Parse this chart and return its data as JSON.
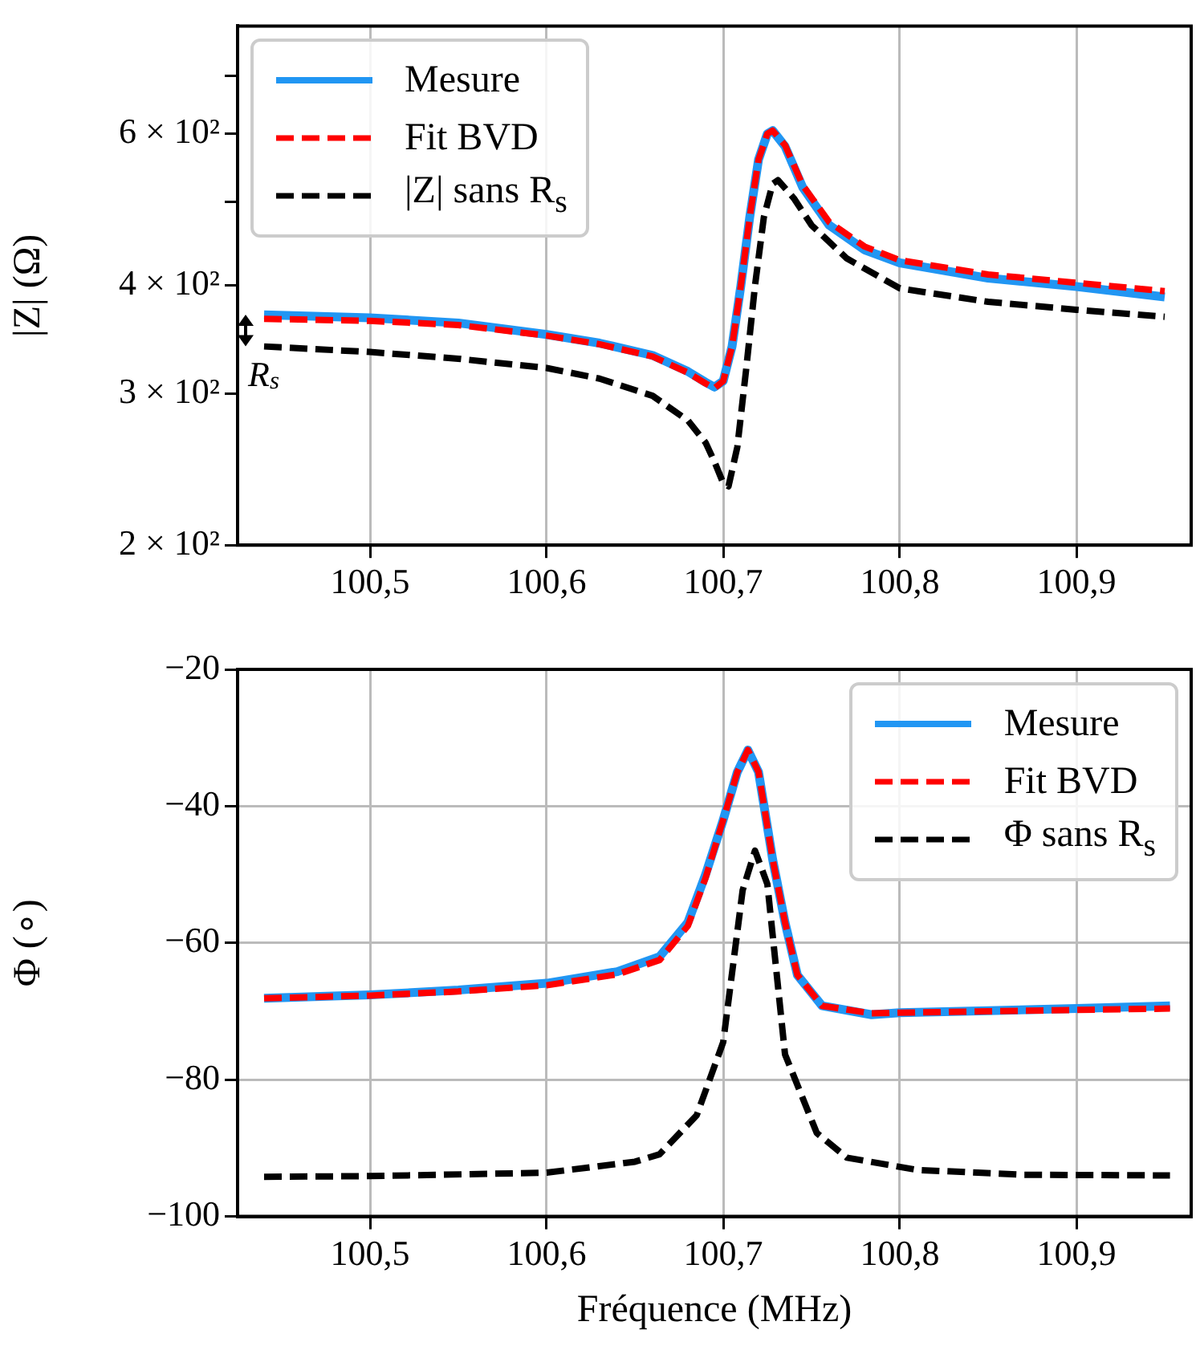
{
  "chart_data": [
    {
      "type": "line",
      "ylabel": "|Z| (Ω)",
      "log": "y",
      "grid": "x",
      "legend": "top left",
      "xlim": [
        100.425,
        100.965
      ],
      "xticks": [
        {
          "value": 100.5,
          "label": "100,5"
        },
        {
          "value": 100.6,
          "label": "100,6"
        },
        {
          "value": 100.7,
          "label": "100,7"
        },
        {
          "value": 100.8,
          "label": "100,8"
        },
        {
          "value": 100.9,
          "label": "100,9"
        }
      ],
      "ylim": [
        200,
        800
      ],
      "yticks": [
        {
          "value": 200,
          "label": "2 × 10²"
        },
        {
          "value": 300,
          "label": "3 × 10²"
        },
        {
          "value": 400,
          "label": "4 × 10²"
        },
        {
          "value": 500,
          "label": null
        },
        {
          "value": 600,
          "label": "6 × 10²"
        },
        {
          "value": 700,
          "label": null
        }
      ],
      "annotations": [
        "R$_{s}$"
      ],
      "series": [
        {
          "name": "Mesure",
          "color": "#2196f3",
          "line_style": "solid",
          "x": [
            100.44,
            100.5,
            100.55,
            100.6,
            100.63,
            100.66,
            100.68,
            100.69,
            100.695,
            100.7,
            100.705,
            100.71,
            100.715,
            100.72,
            100.725,
            100.728,
            100.735,
            100.745,
            100.76,
            100.78,
            100.8,
            100.85,
            100.9,
            100.95
          ],
          "values": [
            370,
            367,
            362,
            351,
            343,
            332,
            318,
            309,
            305,
            310,
            340,
            400,
            480,
            560,
            600,
            605,
            580,
            520,
            470,
            440,
            425,
            408,
            399,
            388
          ]
        },
        {
          "name": "Fit BVD",
          "color": "#ff0000",
          "line_style": "dashed",
          "x": [
            100.44,
            100.5,
            100.55,
            100.6,
            100.63,
            100.66,
            100.68,
            100.69,
            100.695,
            100.7,
            100.705,
            100.71,
            100.715,
            100.72,
            100.725,
            100.728,
            100.735,
            100.745,
            100.76,
            100.78,
            100.8,
            100.85,
            100.9,
            100.95
          ],
          "values": [
            366,
            364,
            360,
            350,
            342,
            331,
            317,
            308,
            304,
            310,
            340,
            400,
            480,
            560,
            600,
            605,
            582,
            523,
            474,
            444,
            428,
            412,
            403,
            394
          ]
        },
        {
          "name": "|Z| sans R$_{s}$",
          "color": "#000000",
          "line_style": "dashed",
          "x": [
            100.44,
            100.5,
            100.55,
            100.6,
            100.63,
            100.66,
            100.68,
            100.69,
            100.695,
            100.7,
            100.703,
            100.708,
            100.713,
            100.718,
            100.723,
            100.728,
            100.731,
            100.74,
            100.75,
            100.77,
            100.8,
            100.85,
            100.9,
            100.95
          ],
          "values": [
            340,
            335,
            329,
            321,
            312,
            298,
            279,
            263,
            250,
            236,
            234,
            260,
            320,
            400,
            480,
            525,
            530,
            505,
            470,
            430,
            397,
            383,
            375,
            368
          ]
        }
      ]
    },
    {
      "type": "line",
      "xlabel": "Fréquence (MHz)",
      "ylabel": "Φ (∘)",
      "grid": true,
      "legend": "top right",
      "xlim": [
        100.425,
        100.965
      ],
      "xticks": [
        {
          "value": 100.5,
          "label": "100,5"
        },
        {
          "value": 100.6,
          "label": "100,6"
        },
        {
          "value": 100.7,
          "label": "100,7"
        },
        {
          "value": 100.8,
          "label": "100,8"
        },
        {
          "value": 100.9,
          "label": "100,9"
        }
      ],
      "ylim": [
        -100,
        -20
      ],
      "yticks": [
        {
          "value": -100,
          "label": "−100"
        },
        {
          "value": -80,
          "label": "−80"
        },
        {
          "value": -60,
          "label": "−60"
        },
        {
          "value": -40,
          "label": "−40"
        },
        {
          "value": -20,
          "label": "−20"
        }
      ],
      "series": [
        {
          "name": "Mesure",
          "color": "#2196f3",
          "line_style": "solid",
          "x": [
            100.44,
            100.5,
            100.55,
            100.6,
            100.64,
            100.664,
            100.68,
            100.69,
            100.7,
            100.708,
            100.714,
            100.72,
            100.728,
            100.735,
            100.742,
            100.756,
            100.784,
            100.8,
            100.85,
            100.9,
            100.953
          ],
          "values": [
            -68.1,
            -67.6,
            -66.9,
            -65.9,
            -64.2,
            -62,
            -57,
            -50,
            -42,
            -35,
            -31.8,
            -35,
            -47.8,
            -57,
            -64.7,
            -69.2,
            -70.5,
            -70.2,
            -69.9,
            -69.6,
            -69.2
          ]
        },
        {
          "name": "Fit BVD",
          "color": "#ff0000",
          "line_style": "dashed",
          "x": [
            100.44,
            100.5,
            100.55,
            100.6,
            100.64,
            100.664,
            100.68,
            100.69,
            100.7,
            100.708,
            100.714,
            100.72,
            100.728,
            100.735,
            100.742,
            100.756,
            100.784,
            100.8,
            100.85,
            100.9,
            100.953
          ],
          "values": [
            -68.1,
            -67.7,
            -67.1,
            -66.2,
            -64.6,
            -62.5,
            -57.5,
            -50.5,
            -42,
            -35,
            -31.8,
            -35,
            -47.8,
            -57,
            -64.7,
            -69.2,
            -70.3,
            -70.2,
            -70,
            -69.8,
            -69.6
          ]
        },
        {
          "name": "Φ sans R$_{s}$",
          "color": "#000000",
          "line_style": "dashed",
          "x": [
            100.44,
            100.5,
            100.6,
            100.65,
            100.664,
            100.685,
            100.7,
            100.711,
            100.718,
            100.725,
            100.735,
            100.753,
            100.77,
            100.81,
            100.87,
            100.953
          ],
          "values": [
            -94.2,
            -94.1,
            -93.6,
            -92,
            -90.9,
            -85.2,
            -74.5,
            -52.3,
            -46.5,
            -51.4,
            -76.3,
            -87.8,
            -91.4,
            -93.2,
            -93.9,
            -94
          ]
        }
      ]
    }
  ]
}
